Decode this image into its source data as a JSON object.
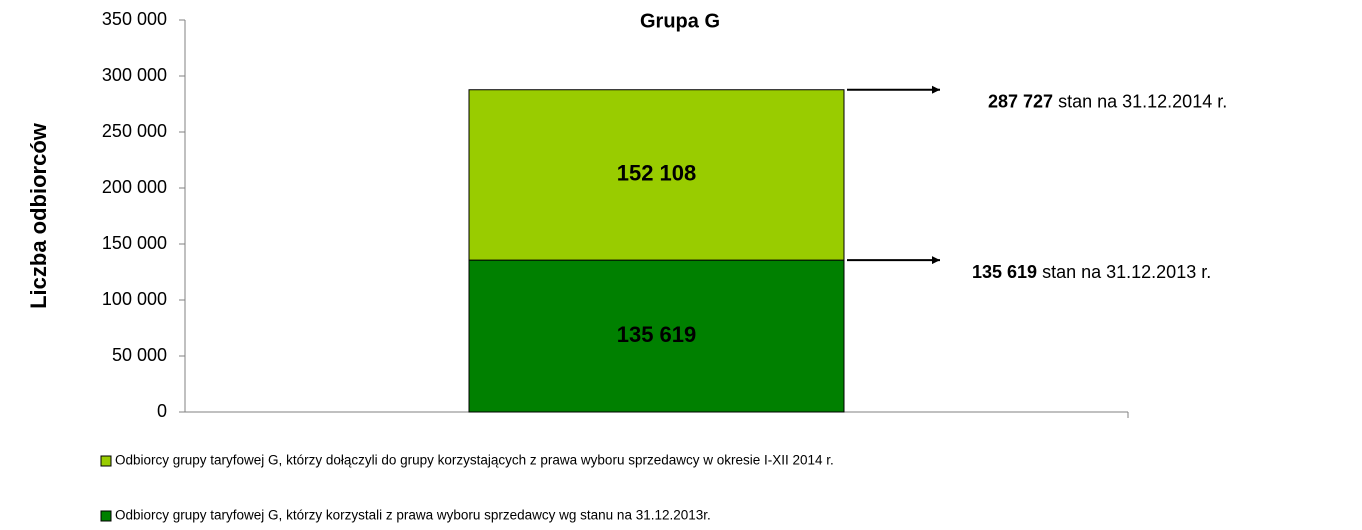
{
  "chart_data": {
    "type": "stacked_bar",
    "title": "Grupa G",
    "y_label": "Liczba odbiorców",
    "categories": [
      null
    ],
    "series": [
      {
        "name": "Odbiorcy grupy taryfowej G, którzy korzystali z prawa wyboru sprzedawcy wg stanu na 31.12.2013r.",
        "color": "#008000",
        "values": [
          135619
        ],
        "value_labels": [
          "135 619"
        ]
      },
      {
        "name": "Odbiorcy grupy taryfowej G, którzy dołączyli do grupy korzystających z  prawa wyboru sprzedawcy w okresie I-XII 2014 r.",
        "color": "#99cc00",
        "values": [
          152108
        ],
        "value_labels": [
          "152 108"
        ]
      }
    ],
    "annotations": [
      {
        "value": 287727,
        "label": "287 727",
        "text": "stan na 31.12.2014 r."
      },
      {
        "value": 135619,
        "label": "135 619",
        "text": "stan na 31.12.2013 r."
      }
    ],
    "ylim": [
      0,
      350000
    ],
    "yticks": [
      0,
      {
        "value": 50000,
        "label": "50 000"
      },
      {
        "value": 100000,
        "label": "100 000"
      },
      {
        "value": 150000,
        "label": "150 000"
      },
      {
        "value": 200000,
        "label": "200 000"
      },
      {
        "value": 250000,
        "label": "250 000"
      },
      {
        "value": 300000,
        "label": "300 000"
      },
      {
        "value": 350000,
        "label": "350 000"
      }
    ],
    "grid": false,
    "legend": "bottom"
  }
}
